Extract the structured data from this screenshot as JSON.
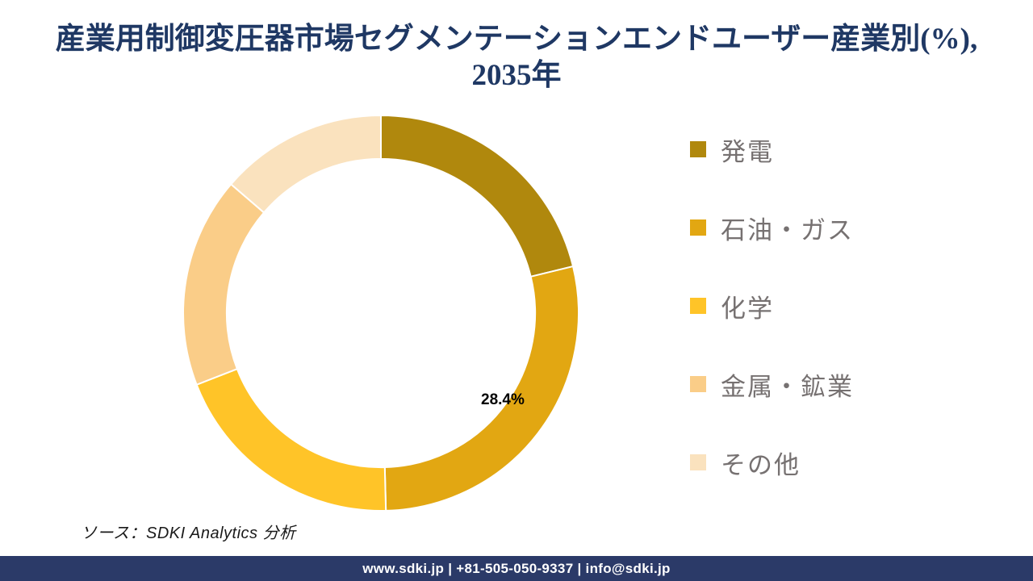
{
  "header": {
    "title_line1": "産業用制御変圧器市場セグメンテーションエンドユーザー産業別(%),",
    "title_line2": "2035年",
    "title_color": "#1F3864"
  },
  "chart_data": {
    "type": "pie",
    "subtype": "donut",
    "title": "産業用制御変圧器市場セグメンテーションエンドユーザー産業別(%), 2035年",
    "categories": [
      "発電",
      "石油・ガス",
      "化学",
      "金属・鉱業",
      "その他"
    ],
    "values": [
      21.2,
      28.4,
      19.5,
      17.2,
      13.7
    ],
    "colors": [
      "#B0880D",
      "#E2A712",
      "#FFC428",
      "#FACD88",
      "#FAE2BE"
    ],
    "start_angle_deg": 0,
    "direction": "clockwise",
    "inner_radius_ratio": 0.78,
    "slice_border_color": "#FFFFFF",
    "data_labels": [
      {
        "index": 1,
        "category": "石油・ガス",
        "text": "28.4%"
      }
    ],
    "legend_position": "right"
  },
  "legend": {
    "text_color": "#767171"
  },
  "source_note": {
    "text": "ソース：SDKI Analytics 分析"
  },
  "footer": {
    "text": "www.sdki.jp | +81-505-050-9337 | info@sdki.jp",
    "background": "#2B3A68"
  }
}
